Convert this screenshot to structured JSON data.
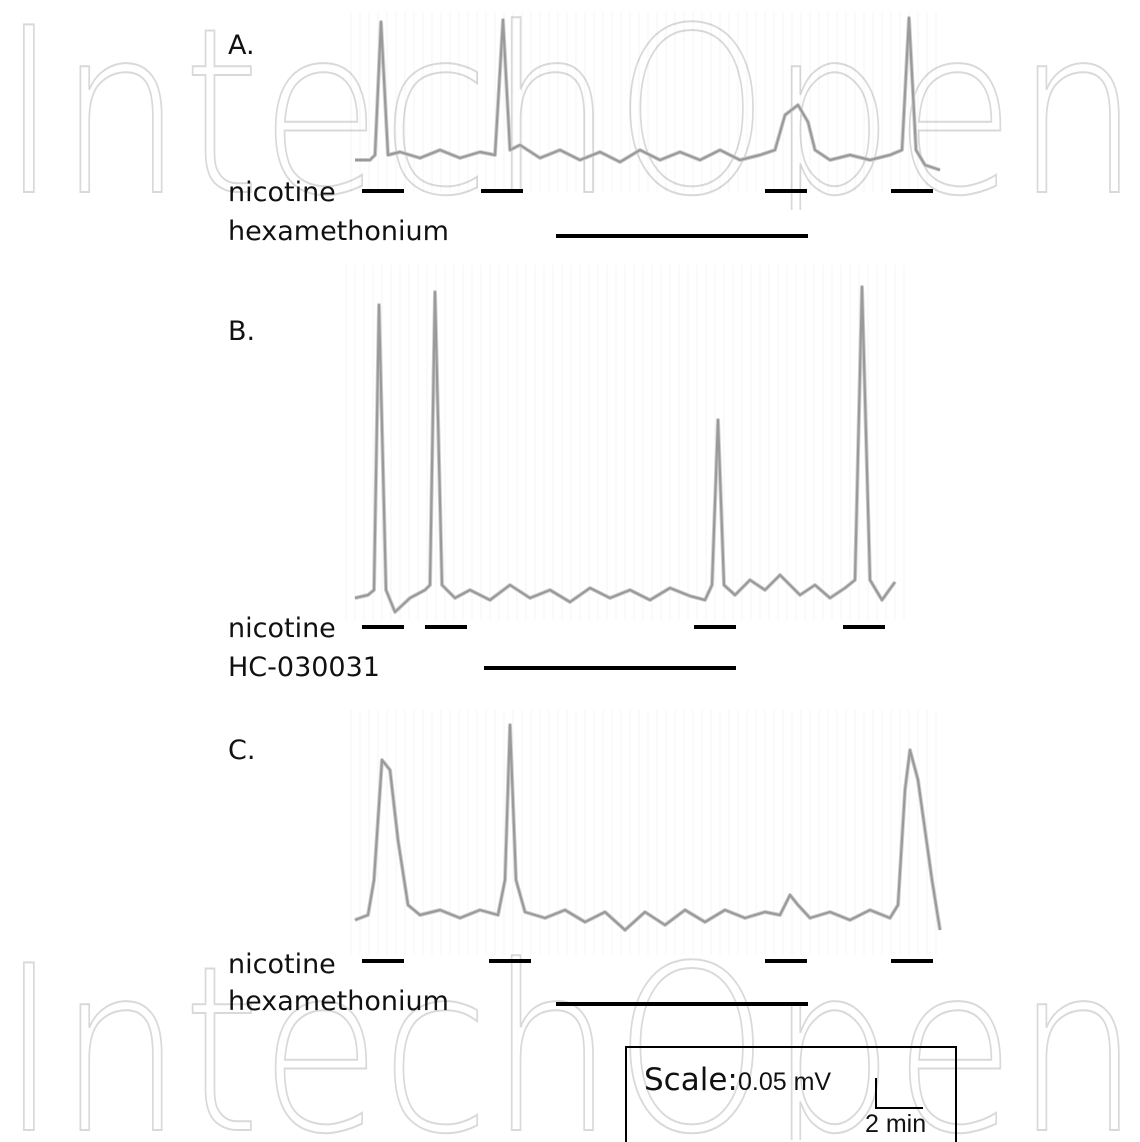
{
  "watermark": {
    "text": "IntechOpen"
  },
  "panels": [
    {
      "letter": "A.",
      "labels": [
        "nicotine",
        "hexamethonium"
      ]
    },
    {
      "letter": "B.",
      "labels": [
        "nicotine",
        "HC-030031"
      ]
    },
    {
      "letter": "C.",
      "labels": [
        "nicotine",
        "hexamethonium"
      ]
    }
  ],
  "scale": {
    "label": "Scale:",
    "voltage": "0.05 mV",
    "time": "2 min"
  }
}
